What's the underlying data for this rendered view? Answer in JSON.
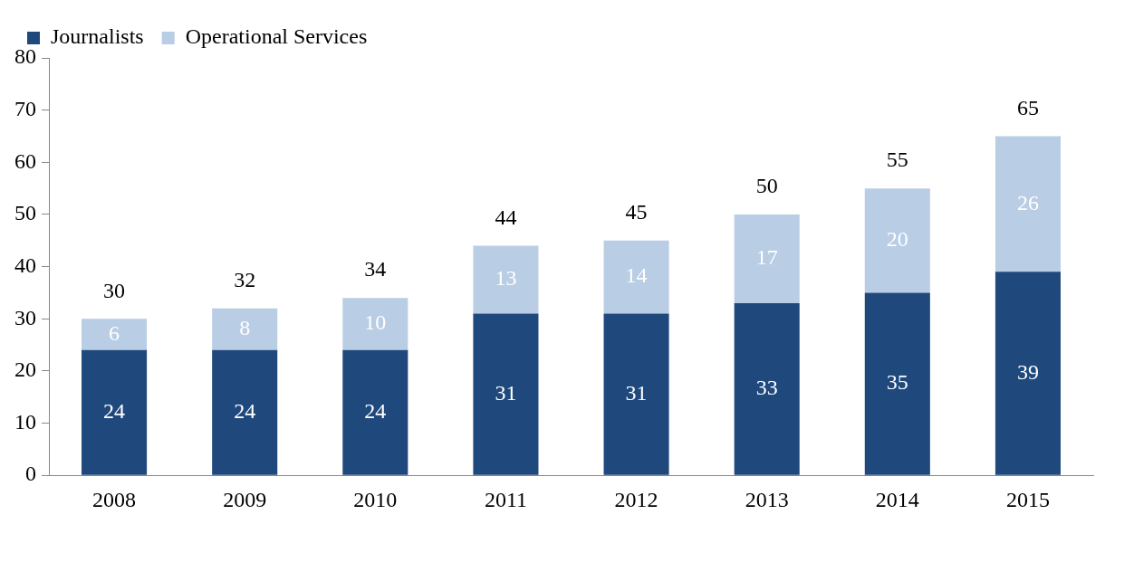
{
  "chart_data": {
    "type": "bar",
    "stacked": true,
    "categories": [
      "2008",
      "2009",
      "2010",
      "2011",
      "2012",
      "2013",
      "2014",
      "2015"
    ],
    "series": [
      {
        "name": "Journalists",
        "color": "#1f497d",
        "values": [
          24,
          24,
          24,
          31,
          31,
          33,
          35,
          39
        ]
      },
      {
        "name": "Operational Services",
        "color": "#b9cde5",
        "values": [
          6,
          8,
          10,
          13,
          14,
          17,
          20,
          26
        ]
      }
    ],
    "totals": [
      "30",
      "32",
      "34",
      "44",
      "45",
      "50",
      "55",
      "65"
    ],
    "data_labels": true,
    "ylim": [
      0,
      80
    ],
    "yticks": [
      0,
      10,
      20,
      30,
      40,
      50,
      60,
      70,
      80
    ],
    "grid": false,
    "legend": "top left"
  }
}
